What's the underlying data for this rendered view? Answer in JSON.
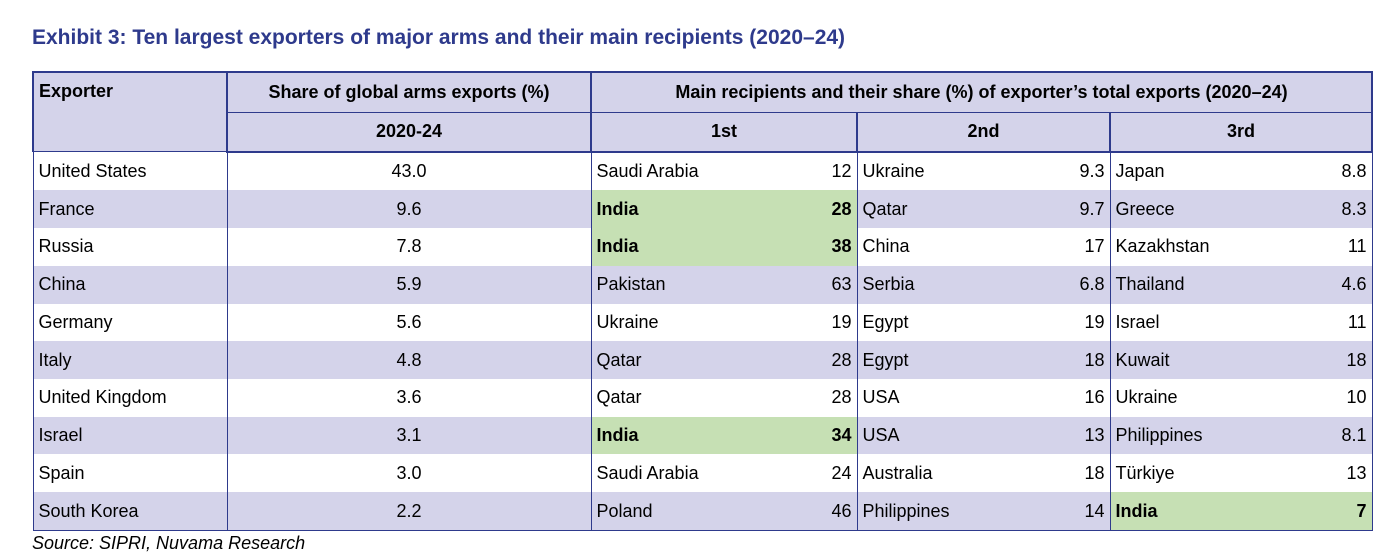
{
  "title": "Exhibit 3: Ten largest exporters of major arms and their main recipients (2020–24)",
  "header": {
    "exporter": "Exporter",
    "share": "Share of global arms exports (%)",
    "recipients": "Main recipients and their share (%) of exporter’s total exports (2020–24)",
    "period": "2020-24",
    "first": "1st",
    "second": "2nd",
    "third": "3rd"
  },
  "colors": {
    "title": "#2e3a8c",
    "border": "#2e3a8c",
    "shade": "#d4d3ea",
    "highlight": "#c6e0b4"
  },
  "rows": [
    {
      "exporter": "United States",
      "share": "43.0",
      "r1": "Saudi Arabia",
      "v1": "12",
      "r2": "Ukraine",
      "v2": "9.3",
      "r3": "Japan",
      "v3": "8.8"
    },
    {
      "exporter": "France",
      "share": "9.6",
      "r1": "India",
      "v1": "28",
      "r2": "Qatar",
      "v2": "9.7",
      "r3": "Greece",
      "v3": "8.3"
    },
    {
      "exporter": "Russia",
      "share": "7.8",
      "r1": "India",
      "v1": "38",
      "r2": "China",
      "v2": "17",
      "r3": "Kazakhstan",
      "v3": "11"
    },
    {
      "exporter": "China",
      "share": "5.9",
      "r1": "Pakistan",
      "v1": "63",
      "r2": "Serbia",
      "v2": "6.8",
      "r3": "Thailand",
      "v3": "4.6"
    },
    {
      "exporter": "Germany",
      "share": "5.6",
      "r1": "Ukraine",
      "v1": "19",
      "r2": "Egypt",
      "v2": "19",
      "r3": "Israel",
      "v3": "11"
    },
    {
      "exporter": "Italy",
      "share": "4.8",
      "r1": "Qatar",
      "v1": "28",
      "r2": "Egypt",
      "v2": "18",
      "r3": "Kuwait",
      "v3": "18"
    },
    {
      "exporter": "United Kingdom",
      "share": "3.6",
      "r1": "Qatar",
      "v1": "28",
      "r2": "USA",
      "v2": "16",
      "r3": "Ukraine",
      "v3": "10"
    },
    {
      "exporter": "Israel",
      "share": "3.1",
      "r1": "India",
      "v1": "34",
      "r2": "USA",
      "v2": "13",
      "r3": "Philippines",
      "v3": "8.1"
    },
    {
      "exporter": "Spain",
      "share": "3.0",
      "r1": "Saudi Arabia",
      "v1": "24",
      "r2": "Australia",
      "v2": "18",
      "r3": "Türkiye",
      "v3": "13"
    },
    {
      "exporter": "South Korea",
      "share": "2.2",
      "r1": "Poland",
      "v1": "46",
      "r2": "Philippines",
      "v2": "14",
      "r3": "India",
      "v3": "7"
    }
  ],
  "source": "Source: SIPRI, Nuvama Research"
}
